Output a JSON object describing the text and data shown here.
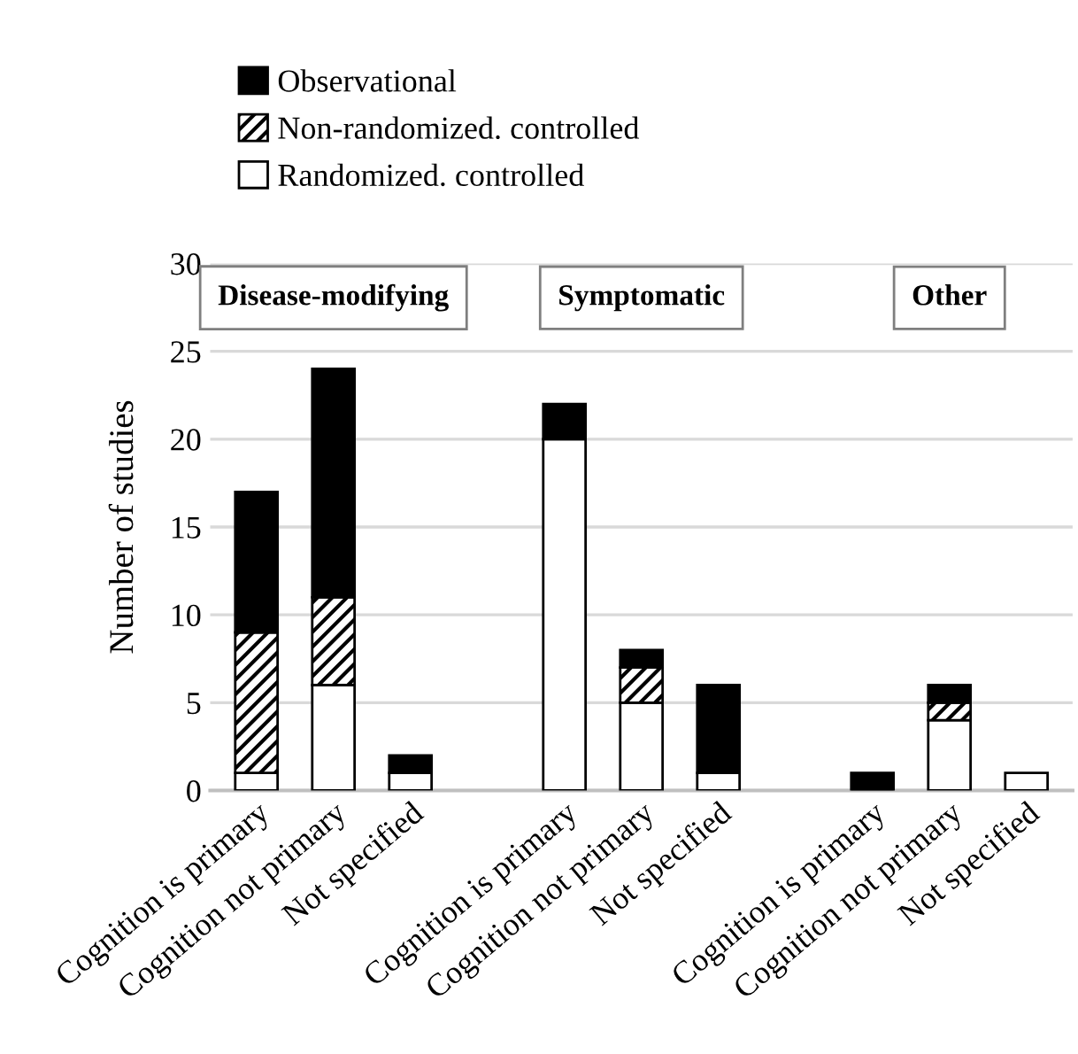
{
  "chart_data": {
    "type": "bar",
    "stacked": true,
    "ylabel": "Number of studies",
    "categories": [
      "Cognition is primary",
      "Cognition not primary",
      "Not specified",
      null,
      "Cognition is primary",
      "Cognition not primary",
      "Not specified",
      null,
      "Cognition is primary",
      "Cognition not primary",
      "Not specified"
    ],
    "series": [
      {
        "name": "Randomized. controlled",
        "color": "#ffffff",
        "values": [
          1,
          6,
          1,
          null,
          20,
          5,
          1,
          null,
          0,
          4,
          1
        ]
      },
      {
        "name": "Non-randomized. controlled",
        "color": "#000000",
        "values": [
          8,
          5,
          0,
          null,
          0,
          2,
          0,
          null,
          0,
          1,
          0
        ]
      },
      {
        "name": "Observational",
        "color": "#000000",
        "values": [
          8,
          13,
          1,
          null,
          2,
          1,
          5,
          null,
          1,
          1,
          0
        ]
      }
    ],
    "annotations": [
      "Disease-modifying",
      "Symptomatic",
      "Other"
    ],
    "ylim": [
      0,
      30
    ],
    "yticks": [
      0,
      5,
      10,
      15,
      20,
      25,
      30
    ],
    "grid": "y",
    "legend": "top left"
  }
}
